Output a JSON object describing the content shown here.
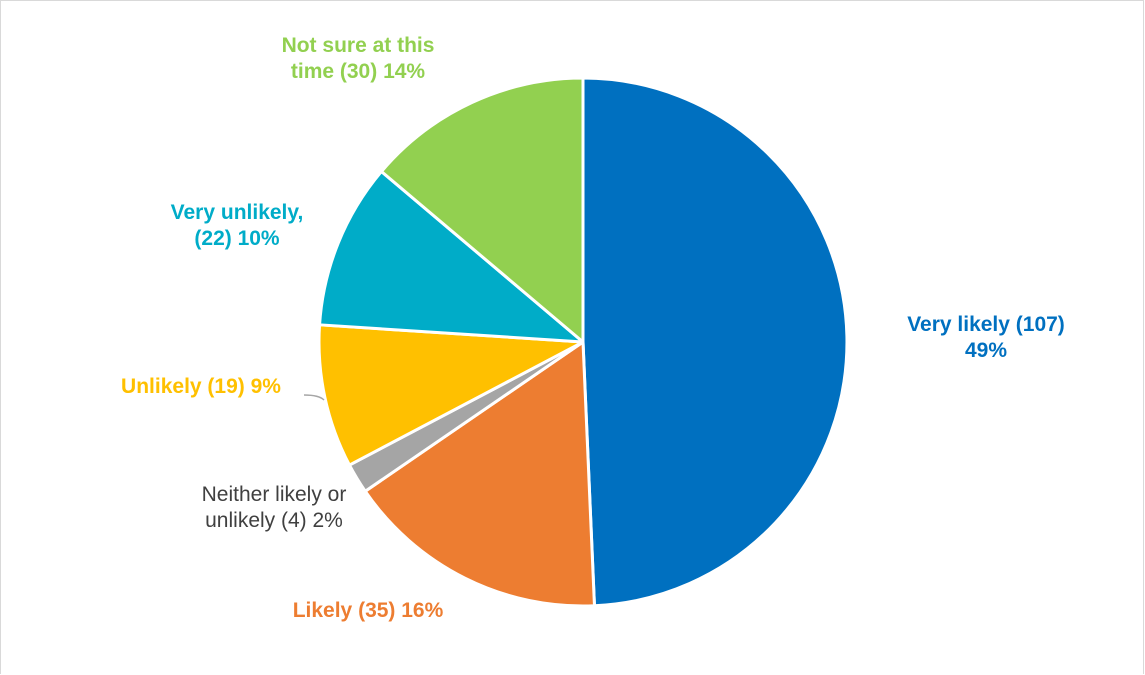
{
  "chart_data": {
    "type": "pie",
    "title": "",
    "legend": "none",
    "slices": [
      {
        "name": "Very likely",
        "value": 107,
        "percent": 49,
        "color": "#0070C0",
        "label_lines": [
          "Very likely (107)",
          "49%"
        ],
        "label_color": "#0070C0"
      },
      {
        "name": "Likely",
        "value": 35,
        "percent": 16,
        "color": "#ED7D31",
        "label_lines": [
          "Likely (35) 16%"
        ],
        "label_color": "#ED7D31"
      },
      {
        "name": "Neither likely or unlikely",
        "value": 4,
        "percent": 2,
        "color": "#A5A5A5",
        "label_lines": [
          "Neither likely or",
          "unlikely (4) 2%"
        ],
        "label_color": "#404040"
      },
      {
        "name": "Unlikely",
        "value": 19,
        "percent": 9,
        "color": "#FFC000",
        "label_lines": [
          "Unlikely (19) 9%"
        ],
        "label_color": "#FFC000"
      },
      {
        "name": "Very unlikely",
        "value": 22,
        "percent": 10,
        "color": "#00ACC8",
        "label_lines": [
          "Very unlikely,",
          "(22) 10%"
        ],
        "label_color": "#00ACC8"
      },
      {
        "name": "Not sure at this time",
        "value": 30,
        "percent": 14,
        "color": "#92D050",
        "label_lines": [
          "Not sure at this",
          "time (30) 14%"
        ],
        "label_color": "#92D050"
      }
    ]
  }
}
